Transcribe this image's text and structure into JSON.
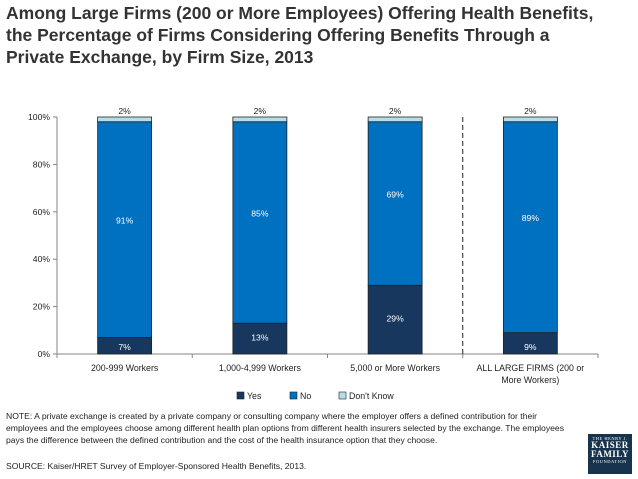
{
  "title_lines": [
    "Among Large Firms (200 or More Employees) Offering Health Benefits,",
    "the Percentage of Firms Considering Offering Benefits Through a",
    "Private Exchange, by Firm Size, 2013"
  ],
  "chart_data": {
    "type": "bar",
    "stacked": true,
    "orientation": "vertical",
    "categories": [
      "200-999 Workers",
      "1,000-4,999 Workers",
      "5,000 or More Workers",
      "ALL LARGE FIRMS (200 or More Workers)"
    ],
    "category_label_lines": [
      [
        "200-999 Workers"
      ],
      [
        "1,000-4,999 Workers"
      ],
      [
        "5,000 or More Workers"
      ],
      [
        "ALL LARGE FIRMS (200 or",
        "More Workers)"
      ]
    ],
    "series": [
      {
        "name": "Yes",
        "values": [
          7,
          13,
          29,
          9
        ],
        "labels": [
          "7%",
          "13%",
          "29%",
          "9%"
        ],
        "color": "#17375e"
      },
      {
        "name": "No",
        "values": [
          91,
          85,
          69,
          89
        ],
        "labels": [
          "91%",
          "85%",
          "69%",
          "89%"
        ],
        "color": "#0070c0"
      },
      {
        "name": "Don't Know",
        "values": [
          2,
          2,
          2,
          2
        ],
        "labels": [
          "2%",
          "2%",
          "2%",
          "2%"
        ],
        "color": "#b7dee8"
      }
    ],
    "y_ticks": [
      "0%",
      "20%",
      "40%",
      "60%",
      "80%",
      "100%"
    ],
    "ylim": [
      0,
      100
    ],
    "xlabel": "",
    "ylabel": "",
    "grid": false,
    "legend_position": "bottom",
    "separator_before_last_category": true
  },
  "note": "NOTE: A private exchange is created by a private company or consulting company where the employer offers a defined contribution for their employees and the employees choose among different health plan options from different health insurers selected by the exchange.  The employees pays the difference between the defined contribution and the cost of the health insurance option that they choose.",
  "source": "SOURCE: Kaiser/HRET Survey of Employer-Sponsored Health Benefits, 2013.",
  "logo": {
    "line1": "THE HENRY J.",
    "line2": "KAISER",
    "line3": "FAMILY",
    "line4": "FOUNDATION"
  }
}
